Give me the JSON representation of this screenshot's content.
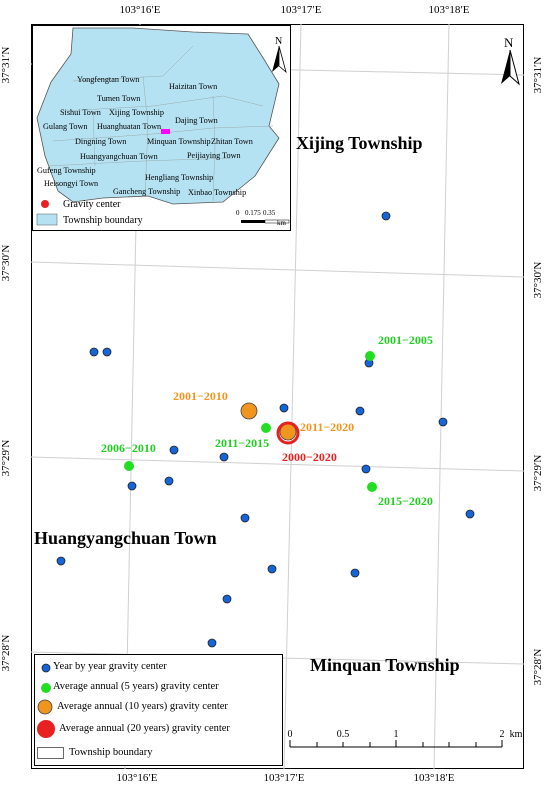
{
  "axes": {
    "top_ticks": [
      "103°16′E",
      "103°17′E",
      "103°18′E"
    ],
    "bottom_ticks": [
      "103°16′E",
      "103°17′E",
      "103°18′E"
    ],
    "left_ticks": [
      "37°31′N",
      "37°30′N",
      "37°29′N",
      "37°28′N"
    ],
    "right_ticks": [
      "37°31′N",
      "37°30′N",
      "37°29′N",
      "37°28′N"
    ]
  },
  "regions": {
    "xijing": "Xijing Township",
    "huangyangchuan": "Huangyangchuan Town",
    "minquan": "Minquan Township"
  },
  "north_arrow": "N",
  "points": {
    "yearly_color": "#1565d8",
    "five_year_color": "#22dd22",
    "ten_year_color": "#f0961e",
    "twenty_year_color": "#e82020"
  },
  "labels": {
    "l2001_2005": "2001−2005",
    "l2001_2010": "2001−2010",
    "l2011_2015": "2011−2015",
    "l2011_2020": "2011−2020",
    "l2000_2020": "2000−2020",
    "l2006_2010": "2006−2010",
    "l2015_2020": "2015−2020"
  },
  "label_colors": {
    "five_year": "#22cc22",
    "ten_year": "#f0961e",
    "twenty_year": "#e82020"
  },
  "inset": {
    "north": "N",
    "towns": [
      "Yongfengtan Town",
      "Haizitan Town",
      "Tumen Town",
      "Sishui Town",
      "Xijing Township",
      "Gulang Town",
      "Huanghuatan Town",
      "Dajing Town",
      "Dingning Town",
      "Minquan Township",
      "Zhitan Town",
      "Huangyangchuan Town",
      "Peijiaying Town",
      "Gufeng Township",
      "Hengliang Township",
      "Heisongyi Town",
      "Gancheng Township",
      "Xinbao Township"
    ],
    "legend_gravity": "Gravity center",
    "legend_boundary": "Township boundary",
    "scale_labels": [
      "0",
      "0.175",
      "0.35"
    ],
    "scale_unit": "km",
    "fill_color": "#b5e2f3"
  },
  "legend": {
    "yearly": "Year by year gravity center",
    "five": "Average annual (5 years) gravity center",
    "ten": "Average annual (10 years) gravity center",
    "twenty": "Average annual (20 years) gravity center",
    "boundary": "Township boundary"
  },
  "scale_bar": {
    "labels": [
      "0",
      "0.5",
      "1",
      "2"
    ],
    "unit": "km"
  }
}
